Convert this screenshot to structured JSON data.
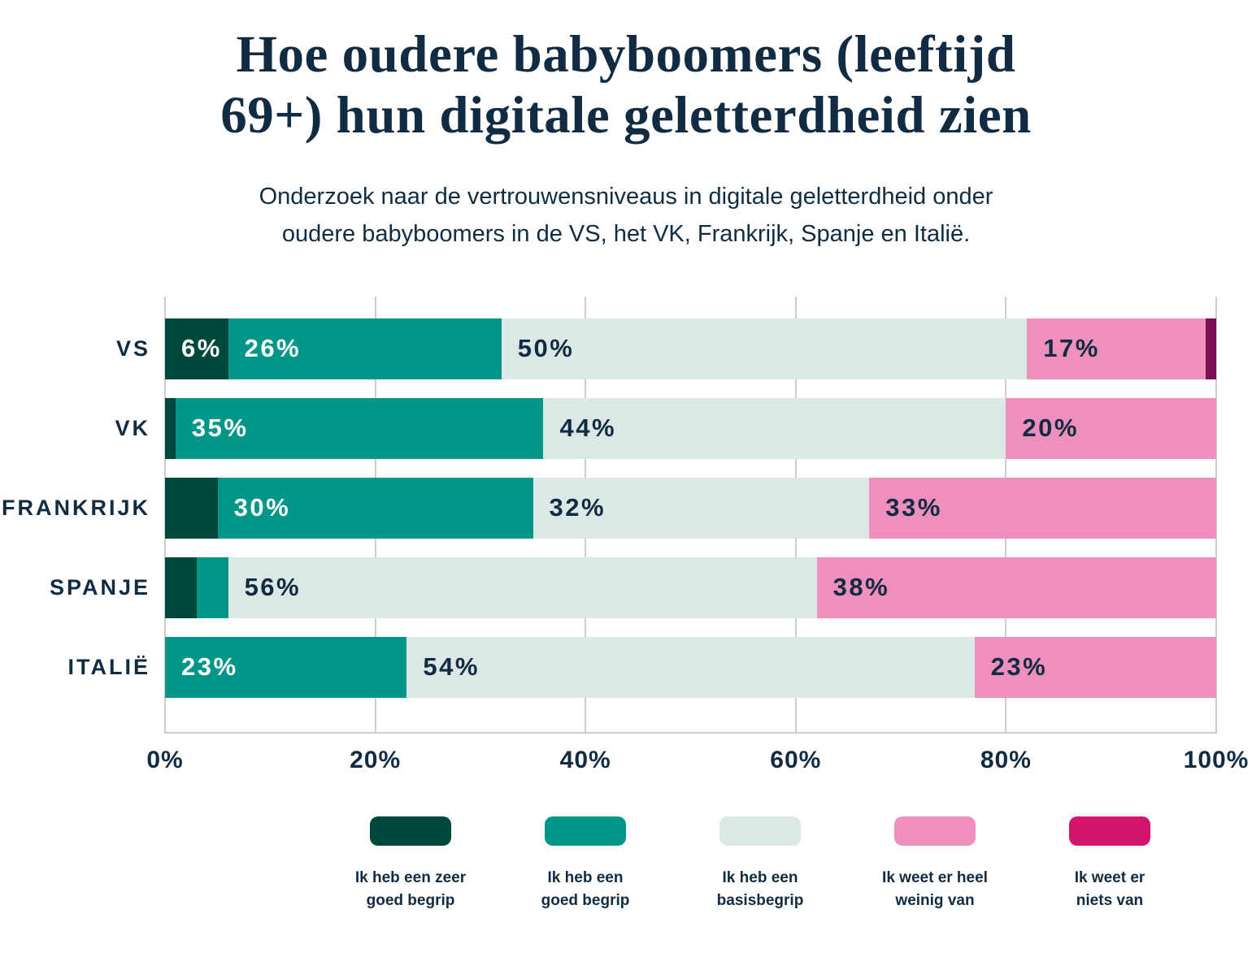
{
  "title": "Hoe oudere babyboomers (leeftijd\n69+) hun digitale geletterdheid zien",
  "subtitle": "Onderzoek naar de vertrouwensniveaus in digitale geletterdheid onder\noudere babyboomers in de VS, het VK, Frankrijk, Spanje en Italië.",
  "colors": {
    "text_navy": "#112C42",
    "gridline": "#C9CFCF",
    "background": "#FFFFFF",
    "very_good": "#02493D",
    "good": "#019688",
    "basic": "#DCE8E5",
    "very_little": "#EE8FBE",
    "nothing_bar": "#7B0E52",
    "nothing_legend": "#D2146B"
  },
  "chart_data": {
    "type": "bar",
    "orientation": "horizontal-stacked",
    "title": "Hoe oudere babyboomers (leeftijd 69+) hun digitale geletterdheid zien",
    "categories": [
      "VS",
      "VK",
      "FRANKRIJK",
      "SPANJE",
      "ITALIË"
    ],
    "series": [
      {
        "name": "Ik heb een zeer goed begrip",
        "color": "#02493D",
        "label_color": "#FFFFFF",
        "values": [
          6,
          1,
          5,
          3,
          0
        ]
      },
      {
        "name": "Ik heb een goed begrip",
        "color": "#019688",
        "label_color": "#FFFFFF",
        "values": [
          26,
          35,
          30,
          3,
          23
        ]
      },
      {
        "name": "Ik heb een basisbegrip",
        "color": "#DCE8E5",
        "label_color": "#112C42",
        "values": [
          50,
          44,
          32,
          56,
          54
        ]
      },
      {
        "name": "Ik weet er heel weinig van",
        "color": "#EE8FBE",
        "label_color": "#112C42",
        "values": [
          17,
          20,
          33,
          38,
          23
        ]
      },
      {
        "name": "Ik weet er niets van",
        "color": "#7B0E52",
        "label_color": "#FFFFFF",
        "values": [
          1,
          0,
          0,
          0,
          0
        ]
      }
    ],
    "label_min_pct": 6,
    "label_suffix": "%",
    "x_ticks": [
      "0%",
      "20%",
      "40%",
      "60%",
      "80%",
      "100%"
    ],
    "xlim": [
      0,
      100
    ],
    "grid": true,
    "legend_position": "bottom"
  },
  "legend": {
    "items": [
      {
        "label": "Ik heb een zeer\ngoed begrip",
        "color": "#02493D"
      },
      {
        "label": "Ik heb een\ngoed begrip",
        "color": "#019688"
      },
      {
        "label": "Ik heb een\nbasisbegrip",
        "color": "#DCE8E5"
      },
      {
        "label": "Ik weet er heel\nweinig van",
        "color": "#EE8FBE"
      },
      {
        "label": "Ik weet er\nniets van",
        "color": "#D2146B"
      }
    ]
  }
}
